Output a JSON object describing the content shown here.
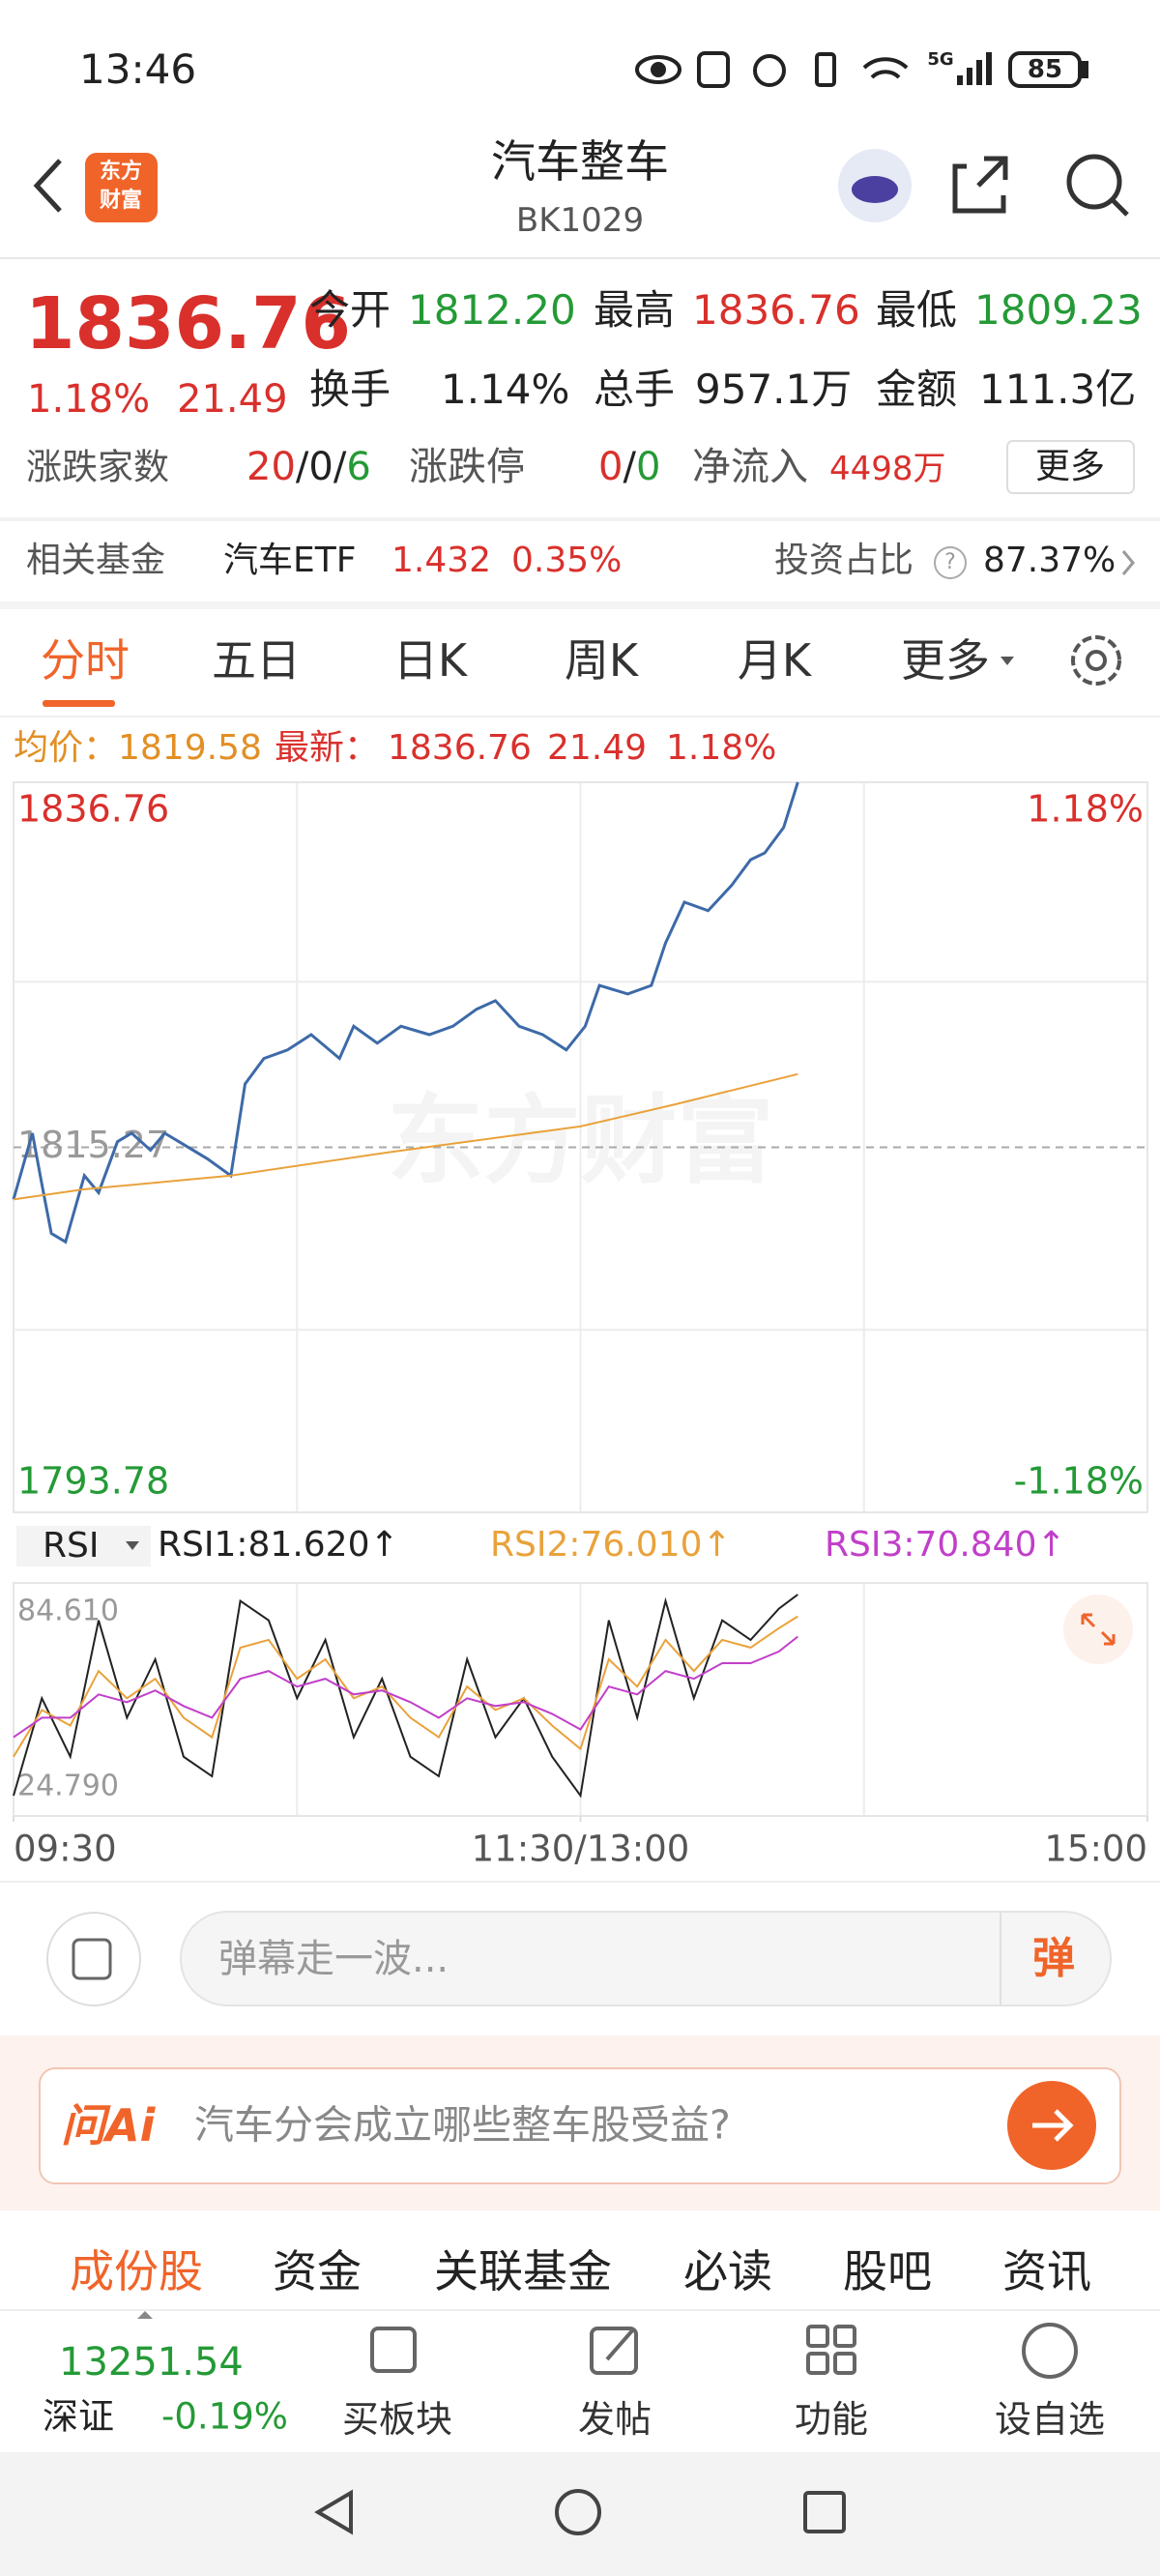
{
  "status_bar": {
    "time": "13:46",
    "network": "5G",
    "battery": "85"
  },
  "header": {
    "logo": [
      "东方",
      "财富"
    ],
    "title": "汽车整车",
    "code": "BK1029"
  },
  "quote": {
    "price": "1836.76",
    "change_pct": "1.18%",
    "change": "21.49",
    "stats": [
      {
        "label": "今开",
        "value": "1812.20"
      },
      {
        "label": "最高",
        "value": "1836.76"
      },
      {
        "label": "最低",
        "value": "1809.23"
      },
      {
        "label": "换手",
        "value": "1.14%"
      },
      {
        "label": "总手",
        "value": "957.1万"
      },
      {
        "label": "金额",
        "value": "111.3亿"
      }
    ],
    "breadth_label": "涨跌家数",
    "breadth": [
      "20",
      "/",
      "0",
      "/",
      "6"
    ],
    "limit_label": "涨跌停",
    "limit": [
      "0",
      "/",
      "0"
    ],
    "inflow_label": "净流入",
    "inflow": "4498万",
    "more": "更多"
  },
  "fund": {
    "label": "相关基金",
    "name": "汽车ETF",
    "price": "1.432",
    "change_pct": "0.35%",
    "ratio_label": "投资占比",
    "ratio_help": "?",
    "ratio": "87.37%"
  },
  "period_tabs": [
    "分时",
    "五日",
    "日K",
    "周K",
    "月K",
    "更多"
  ],
  "summary": {
    "avg": "均价：1819.58",
    "latest_label": "最新：",
    "latest": "1836.76",
    "change": "21.49",
    "change_pct": "1.18%"
  },
  "chart_data": [
    {
      "type": "line",
      "watermark": "东方财富",
      "xlim": [
        0,
        240
      ],
      "xgrid": [
        60,
        120,
        180
      ],
      "ylim": [
        1793.78,
        1836.76
      ],
      "yticks": [
        1793.78,
        1815.27,
        1836.76
      ],
      "ygrid": [
        1804.525,
        1825.015
      ],
      "y2lim": [
        -1.18,
        1.18
      ],
      "y2ticks": [
        {
          "value": -1.18,
          "label": "-1.18%"
        },
        {
          "value": 1.18,
          "label": "1.18%"
        }
      ],
      "series": [
        {
          "color": "#3d6aa8",
          "x": [
            0,
            4,
            6,
            8,
            11,
            15,
            18,
            22,
            25,
            29,
            32,
            35,
            41,
            46,
            49,
            53,
            58,
            63,
            69,
            72,
            77,
            82,
            88,
            93,
            98,
            102,
            107,
            112,
            117,
            121,
            124,
            130,
            135,
            138,
            142,
            147,
            152,
            156,
            159,
            163,
            166
          ],
          "values": [
            1812.2,
            1816.1,
            1813.1,
            1810.2,
            1809.7,
            1813.6,
            1812.6,
            1815.6,
            1816.1,
            1815.1,
            1816.1,
            1815.6,
            1814.6,
            1813.6,
            1819.0,
            1820.5,
            1821.0,
            1821.9,
            1820.5,
            1822.4,
            1821.4,
            1822.4,
            1821.9,
            1822.4,
            1823.4,
            1823.9,
            1822.4,
            1821.9,
            1821.0,
            1822.4,
            1824.8,
            1824.3,
            1824.8,
            1827.3,
            1829.7,
            1829.2,
            1830.7,
            1832.2,
            1832.6,
            1834.1,
            1836.76
          ]
        },
        {
          "color": "#e9a23b",
          "x": [
            0,
            15,
            46,
            80,
            120,
            140,
            166
          ],
          "values": [
            1812.2,
            1812.8,
            1813.6,
            1815.0,
            1816.5,
            1817.8,
            1819.58
          ]
        }
      ]
    },
    {
      "type": "line",
      "indicator": "RSI",
      "xlim": [
        0,
        240
      ],
      "xgrid": [
        60,
        120,
        180
      ],
      "xticks": [
        {
          "value": 0,
          "label": "09:30"
        },
        {
          "value": 120,
          "label": "11:30/13:00"
        },
        {
          "value": 240,
          "label": "15:00"
        }
      ],
      "ylim": [
        24.79,
        84.61
      ],
      "yticks": [
        {
          "value": 24.79,
          "label": "24.790"
        },
        {
          "value": 84.61,
          "label": "84.610"
        }
      ],
      "x": [
        0,
        6,
        12,
        18,
        24,
        30,
        36,
        42,
        48,
        54,
        60,
        66,
        72,
        78,
        84,
        90,
        96,
        102,
        108,
        114,
        120,
        126,
        132,
        138,
        144,
        150,
        156,
        162,
        166
      ],
      "series": [
        {
          "name": "RSI1:81.620↑",
          "color": "#222222",
          "values": [
            30,
            55,
            40,
            75,
            50,
            65,
            40,
            35,
            80,
            75,
            55,
            70,
            45,
            60,
            40,
            35,
            65,
            45,
            55,
            40,
            30,
            75,
            50,
            80,
            55,
            75,
            70,
            78,
            81.62
          ]
        },
        {
          "name": "RSI2:76.010↑",
          "color": "#e9a23b",
          "values": [
            40,
            52,
            48,
            62,
            55,
            60,
            50,
            45,
            68,
            70,
            60,
            65,
            55,
            58,
            50,
            45,
            58,
            52,
            55,
            48,
            42,
            65,
            58,
            70,
            62,
            70,
            68,
            73,
            76.01
          ]
        },
        {
          "name": "RSI3:70.840↑",
          "color": "#c13fc9",
          "values": [
            45,
            50,
            50,
            56,
            54,
            57,
            53,
            50,
            60,
            62,
            58,
            60,
            56,
            57,
            54,
            50,
            55,
            53,
            54,
            51,
            47,
            58,
            56,
            62,
            60,
            64,
            64,
            67,
            70.84
          ]
        }
      ]
    }
  ],
  "comment": {
    "placeholder": "弹幕走一波...",
    "button": "弹"
  },
  "ai": {
    "brand": "问Ai",
    "question": "汽车分会成立哪些整车股受益?"
  },
  "info_tabs": [
    "成份股",
    "资金",
    "关联基金",
    "必读",
    "股吧",
    "资讯"
  ],
  "index": {
    "value": "13251.54",
    "name": "深证",
    "change_pct": "-0.19%"
  },
  "bottom_nav": [
    "买板块",
    "发帖",
    "功能",
    "设自选"
  ]
}
